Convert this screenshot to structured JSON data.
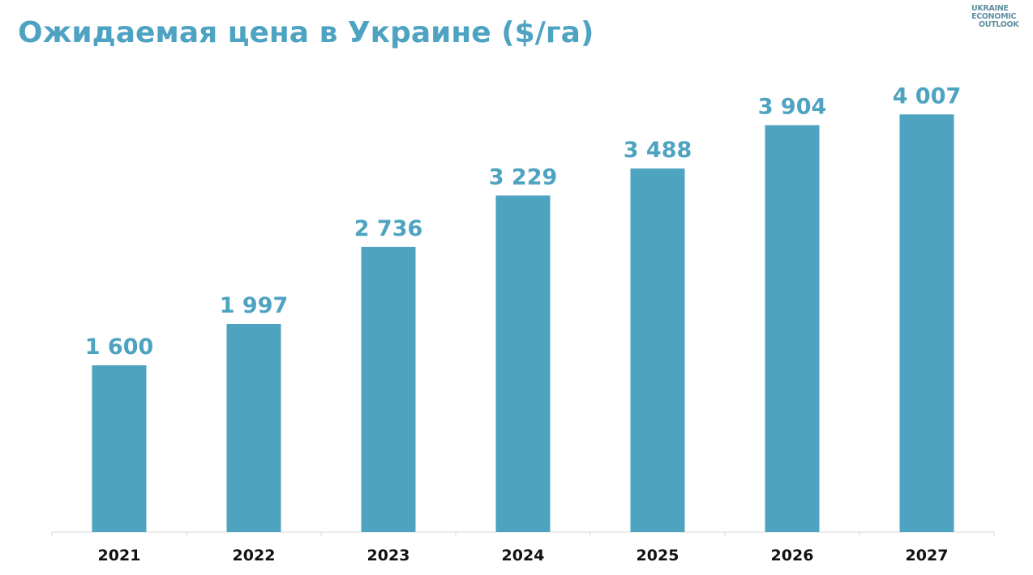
{
  "header": {
    "title": "Ожидаемая цена в Украине ($/га)",
    "logo_lines": [
      "UKRAINE",
      "ECONOMIC",
      "OUTLOOK"
    ]
  },
  "colors": {
    "accent": "#4da3c0",
    "title": "#4ea3c2",
    "axis": "#d9d9d9",
    "category_text": "#111111"
  },
  "chart_data": {
    "type": "bar",
    "title": "Ожидаемая цена в Украине ($/га)",
    "xlabel": "",
    "ylabel": "",
    "categories": [
      "2021",
      "2022",
      "2023",
      "2024",
      "2025",
      "2026",
      "2027"
    ],
    "values": [
      1600,
      1997,
      2736,
      3229,
      3488,
      3904,
      4007
    ],
    "value_labels": [
      "1 600",
      "1 997",
      "2 736",
      "3 229",
      "3 488",
      "3 904",
      "4 007"
    ],
    "ylim": [
      0,
      4400
    ],
    "grid": false,
    "legend": "none"
  }
}
